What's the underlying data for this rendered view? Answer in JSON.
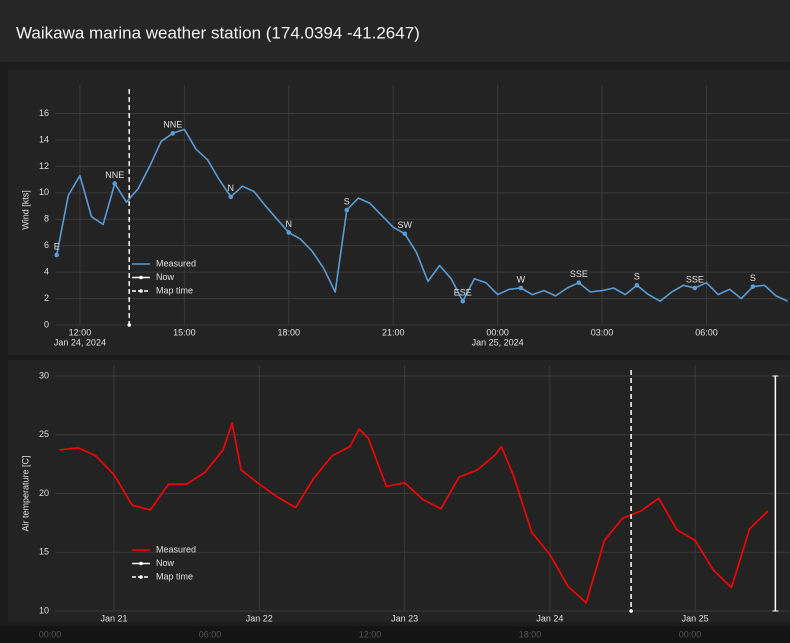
{
  "header": {
    "title": "Waikawa marina weather station (174.0394 -41.2647)"
  },
  "chart_data": [
    {
      "type": "line",
      "ylabel": "Wind [kts]",
      "xlim": [
        "Jan 24 11:17",
        "Jan 25 08:24"
      ],
      "xticks": [
        {
          "value": "Jan 24 12:00",
          "label": "12:00",
          "date": "Jan 24, 2024"
        },
        {
          "value": "Jan 24 15:00",
          "label": "15:00"
        },
        {
          "value": "Jan 24 18:00",
          "label": "18:00"
        },
        {
          "value": "Jan 24 21:00",
          "label": "21:00"
        },
        {
          "value": "Jan 25 00:00",
          "label": "00:00",
          "date": "Jan 25, 2024"
        },
        {
          "value": "Jan 25 03:00",
          "label": "03:00"
        },
        {
          "value": "Jan 25 06:00",
          "label": "06:00"
        }
      ],
      "ylim": [
        0,
        17.4
      ],
      "yticks": [
        0,
        2,
        4,
        6,
        8,
        10,
        12,
        14,
        16
      ],
      "grid": true,
      "series": [
        {
          "name": "Measured",
          "color": "#5b9bd5",
          "x": [
            "Jan 24 11:20",
            "Jan 24 11:40",
            "Jan 24 12:00",
            "Jan 24 12:20",
            "Jan 24 12:40",
            "Jan 24 13:00",
            "Jan 24 13:20",
            "Jan 24 13:40",
            "Jan 24 14:00",
            "Jan 24 14:20",
            "Jan 24 14:40",
            "Jan 24 15:00",
            "Jan 24 15:20",
            "Jan 24 15:40",
            "Jan 24 16:00",
            "Jan 24 16:20",
            "Jan 24 16:40",
            "Jan 24 17:00",
            "Jan 24 17:20",
            "Jan 24 17:40",
            "Jan 24 18:00",
            "Jan 24 18:20",
            "Jan 24 18:40",
            "Jan 24 19:00",
            "Jan 24 19:20",
            "Jan 24 19:40",
            "Jan 24 20:00",
            "Jan 24 20:20",
            "Jan 24 20:40",
            "Jan 24 21:00",
            "Jan 24 21:20",
            "Jan 24 21:40",
            "Jan 24 22:00",
            "Jan 24 22:20",
            "Jan 24 22:40",
            "Jan 24 23:00",
            "Jan 24 23:20",
            "Jan 24 23:40",
            "Jan 25 00:00",
            "Jan 25 00:20",
            "Jan 25 00:40",
            "Jan 25 01:00",
            "Jan 25 01:20",
            "Jan 25 01:40",
            "Jan 25 02:00",
            "Jan 25 02:20",
            "Jan 25 02:40",
            "Jan 25 03:00",
            "Jan 25 03:20",
            "Jan 25 03:40",
            "Jan 25 04:00",
            "Jan 25 04:20",
            "Jan 25 04:40",
            "Jan 25 05:00",
            "Jan 25 05:20",
            "Jan 25 05:40",
            "Jan 25 06:00",
            "Jan 25 06:20",
            "Jan 25 06:40",
            "Jan 25 07:00",
            "Jan 25 07:20",
            "Jan 25 07:40",
            "Jan 25 08:00",
            "Jan 25 08:20"
          ],
          "values": [
            5.3,
            9.8,
            11.3,
            8.2,
            7.6,
            10.7,
            9.3,
            10.3,
            12,
            13.9,
            14.5,
            14.8,
            13.3,
            12.5,
            11,
            9.7,
            10.5,
            10.1,
            9,
            8,
            7,
            6.5,
            5.6,
            4.3,
            2.5,
            8.7,
            9.6,
            9.2,
            8.3,
            7.4,
            6.9,
            5.5,
            3.3,
            4.5,
            3.5,
            1.8,
            3.5,
            3.2,
            2.3,
            2.7,
            2.8,
            2.3,
            2.6,
            2.2,
            2.8,
            3.2,
            2.5,
            2.6,
            2.8,
            2.3,
            3,
            2.3,
            1.8,
            2.5,
            3,
            2.8,
            3.2,
            2.3,
            2.7,
            2,
            2.9,
            3,
            2.2,
            1.8
          ]
        }
      ],
      "annotations": [
        {
          "x": "Jan 24 11:20",
          "y": 5.3,
          "text": "E"
        },
        {
          "x": "Jan 24 13:00",
          "y": 10.7,
          "text": "NNE"
        },
        {
          "x": "Jan 24 14:40",
          "y": 14.5,
          "text": "NNE"
        },
        {
          "x": "Jan 24 16:20",
          "y": 9.7,
          "text": "N"
        },
        {
          "x": "Jan 24 18:00",
          "y": 7,
          "text": "N"
        },
        {
          "x": "Jan 24 19:40",
          "y": 8.7,
          "text": "S"
        },
        {
          "x": "Jan 24 21:20",
          "y": 6.9,
          "text": "SW"
        },
        {
          "x": "Jan 24 23:00",
          "y": 1.8,
          "text": "ESE"
        },
        {
          "x": "Jan 25 00:40",
          "y": 2.8,
          "text": "W"
        },
        {
          "x": "Jan 25 02:20",
          "y": 3.2,
          "text": "SSE"
        },
        {
          "x": "Jan 25 04:00",
          "y": 3,
          "text": "S"
        },
        {
          "x": "Jan 25 05:40",
          "y": 2.8,
          "text": "SSE"
        },
        {
          "x": "Jan 25 07:20",
          "y": 2.9,
          "text": "S"
        }
      ],
      "now": {
        "name": "Now"
      },
      "map_time": {
        "name": "Map time",
        "x": "Jan 24 13:25"
      }
    },
    {
      "type": "line",
      "ylabel": "Air temperature [C]",
      "xlim": [
        "Jan 20 14:15",
        "Jan 25 15:40"
      ],
      "xticks": [
        {
          "value": "Jan 21 00:00",
          "label": "Jan 21"
        },
        {
          "value": "Jan 22 00:00",
          "label": "Jan 22"
        },
        {
          "value": "Jan 23 00:00",
          "label": "Jan 23"
        },
        {
          "value": "Jan 24 00:00",
          "label": "Jan 24"
        },
        {
          "value": "Jan 25 00:00",
          "label": "Jan 25"
        }
      ],
      "ylim": [
        10,
        30
      ],
      "yticks": [
        10,
        15,
        20,
        25,
        30
      ],
      "grid": true,
      "series": [
        {
          "name": "Measured",
          "color": "#ff0000",
          "x": [
            "Jan 20 15:00",
            "Jan 20 18:00",
            "Jan 20 21:00",
            "Jan 21 00:00",
            "Jan 21 03:00",
            "Jan 21 06:00",
            "Jan 21 09:00",
            "Jan 21 12:00",
            "Jan 21 15:00",
            "Jan 21 18:00",
            "Jan 21 19:30",
            "Jan 21 21:00",
            "Jan 22 00:00",
            "Jan 22 03:00",
            "Jan 22 06:00",
            "Jan 22 09:00",
            "Jan 22 12:00",
            "Jan 22 15:00",
            "Jan 22 16:30",
            "Jan 22 18:00",
            "Jan 22 21:00",
            "Jan 23 00:00",
            "Jan 23 03:00",
            "Jan 23 06:00",
            "Jan 23 09:00",
            "Jan 23 12:00",
            "Jan 23 15:00",
            "Jan 23 16:00",
            "Jan 23 18:00",
            "Jan 23 21:00",
            "Jan 24 00:00",
            "Jan 24 03:00",
            "Jan 24 06:00",
            "Jan 24 09:00",
            "Jan 24 12:00",
            "Jan 24 15:00",
            "Jan 24 18:00",
            "Jan 24 21:00",
            "Jan 25 00:00",
            "Jan 25 03:00",
            "Jan 25 06:00",
            "Jan 25 09:00",
            "Jan 25 12:00"
          ],
          "values": [
            23.7,
            23.9,
            23.2,
            21.6,
            19,
            18.6,
            20.8,
            20.8,
            21.8,
            23.7,
            26,
            22,
            20.8,
            19.7,
            18.8,
            21.3,
            23.2,
            24,
            25.5,
            24.7,
            20.6,
            20.9,
            19.5,
            18.7,
            21.4,
            22,
            23.3,
            24,
            21.5,
            16.7,
            14.8,
            12.1,
            10.7,
            16,
            17.9,
            18.5,
            19.6,
            16.9,
            16,
            13.5,
            12,
            17,
            18.5
          ]
        }
      ],
      "now": {
        "name": "Now",
        "x": "Jan 25 13:15"
      },
      "map_time": {
        "name": "Map time",
        "x": "Jan 24 13:25"
      }
    }
  ],
  "footer": {
    "ticks": [
      "00:00",
      "06:00",
      "12:00",
      "18:00",
      "00:00"
    ]
  }
}
